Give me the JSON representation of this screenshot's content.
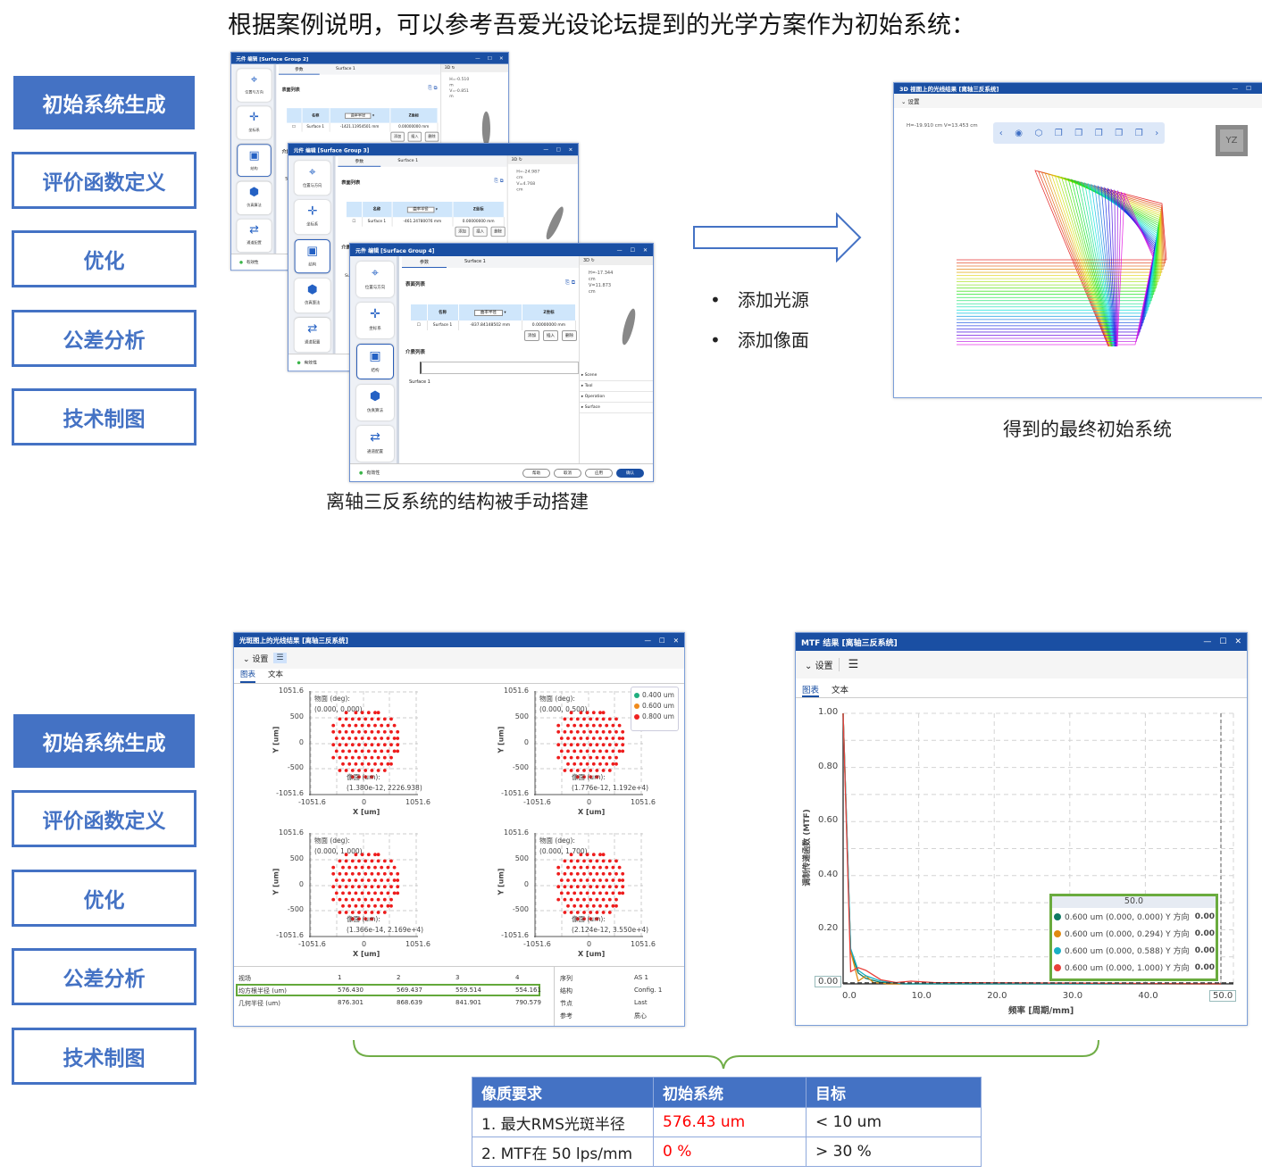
{
  "title": "根据案例说明，可以参考吾爱光设论坛提到的光学方案作为初始系统：",
  "nav_top": [
    "初始系统生成",
    "评价函数定义",
    "优化",
    "公差分析",
    "技术制图"
  ],
  "nav_bottom": [
    "初始系统生成",
    "评价函数定义",
    "优化",
    "公差分析",
    "技术制图"
  ],
  "dialog_common": {
    "side": [
      "位置与方向",
      "坐标系",
      "结构",
      "仿真算法",
      "通道配置"
    ],
    "tabs": [
      "参数",
      "Surface 1"
    ],
    "surface_list": "表面列表",
    "col_name": "名称",
    "col_select": "曲率半径",
    "col_z": "Z坐标",
    "row_name": "Surface 1",
    "z_value": "0.00000000 mm",
    "btn_add": "添加",
    "btn_insert": "插入",
    "btn_delete": "删除",
    "medium_list": "介质列表",
    "medium_surface": "Surface 1",
    "view_label": "3D",
    "tree": [
      "Scene",
      "Tool",
      "Operation",
      "Surface"
    ],
    "validity": "有效性",
    "footer_buttons": [
      "帮助",
      "取消",
      "应用",
      "确认"
    ]
  },
  "dialogs": [
    {
      "title": "元件 编辑 [Surface Group 2]",
      "radius": "-1421.11954501 mm",
      "h": "H=-0.510",
      "hu": "m",
      "v": "V=-0.851",
      "vu": "m"
    },
    {
      "title": "元件 编辑 [Surface Group 3]",
      "radius": "-461.24780076 mm",
      "h": "H=-24.987",
      "hu": "cm",
      "v": "V=4.768",
      "vu": "cm"
    },
    {
      "title": "元件 编辑 [Surface Group 4]",
      "radius": "-837.84148502 mm",
      "h": "H=-17.344",
      "hu": "cm",
      "v": "V=11.873",
      "vu": "cm"
    }
  ],
  "caption_left": "离轴三反系统的结构被手动搭建",
  "bullets": [
    "添加光源",
    "添加像面"
  ],
  "view3d": {
    "title": "3D 视图上的光线结果 [离轴三反系统]",
    "settings": "设置",
    "coords": "H=-19.910 cm V=13.453 cm",
    "view_badge": "YZ"
  },
  "caption_right": "得到的最终初始系统",
  "spot": {
    "title": "光斑图上的光线结果 [离轴三反系统]",
    "settings": "设置",
    "tabs": [
      "图表",
      "文本"
    ],
    "ylabel": "Y [um]",
    "xlabel": "X [um]",
    "ticks": [
      "1051.6",
      "500",
      "0",
      "-500",
      "-1051.6"
    ],
    "xticks": [
      "-1051.6",
      "0",
      "1051.6"
    ],
    "obj_label": "物面 (deg):",
    "img_label": "像面 (um):",
    "plots": [
      {
        "field": "(0.000, 0.000)",
        "image": "(1.380e-12, 2226.938)"
      },
      {
        "field": "(0.000, 0.500)",
        "image": "(1.776e-12, 1.192e+4)"
      },
      {
        "field": "(0.000, 1.000)",
        "image": "(1.366e-14, 2.169e+4)"
      },
      {
        "field": "(0.000, 1.700)",
        "image": "(2.124e-12, 3.550e+4)"
      }
    ],
    "legend": [
      {
        "label": "0.400 um",
        "color": "#1fae7f"
      },
      {
        "label": "0.600 um",
        "color": "#f08a1c"
      },
      {
        "label": "0.800 um",
        "color": "#ee2222"
      }
    ],
    "stats": {
      "header": [
        "视场",
        "1",
        "2",
        "3",
        "4"
      ],
      "rms": [
        "均方根半径 (um)",
        "576.430",
        "569.437",
        "559.514",
        "554.161"
      ],
      "geo": [
        "几何半径 (um)",
        "876.301",
        "868.639",
        "841.901",
        "790.579"
      ],
      "info": [
        [
          "序列",
          "AS 1"
        ],
        [
          "结构",
          "Config. 1"
        ],
        [
          "节点",
          "Last"
        ],
        [
          "参考",
          "质心"
        ]
      ]
    }
  },
  "mtf": {
    "title": "MTF 结果 [离轴三反系统]",
    "settings": "设置",
    "tabs": [
      "图表",
      "文本"
    ],
    "ylabel": "调制传递函数 (MTF)",
    "xlabel": "频率 [周期/mm]",
    "yticks": [
      "1.00",
      "0.80",
      "0.60",
      "0.40",
      "0.20"
    ],
    "y0": "0.00",
    "xticks": [
      "0.0",
      "10.0",
      "20.0",
      "30.0",
      "40.0"
    ],
    "xcursor": "50.0",
    "xlim": [
      0,
      50
    ],
    "ylim": [
      0,
      1
    ],
    "tooltip_header": "50.0",
    "series": [
      {
        "name": "0.600 um (0.000, 0.000) Y 方向",
        "value": "0.00",
        "color": "#0f7a63",
        "x": [
          0,
          1,
          2,
          3,
          5,
          8,
          50
        ],
        "y": [
          1,
          0.12,
          0.04,
          0.02,
          0.005,
          0,
          0
        ]
      },
      {
        "name": "0.600 um (0.000, 0.294) Y 方向",
        "value": "0.00",
        "color": "#e08a10",
        "x": [
          0,
          1,
          2,
          3,
          4,
          6,
          50
        ],
        "y": [
          1,
          0.12,
          0.01,
          0.03,
          0.005,
          0,
          0
        ]
      },
      {
        "name": "0.600 um (0.000, 0.588) Y 方向",
        "value": "0.00",
        "color": "#19b0c4",
        "x": [
          0,
          1,
          2,
          3,
          5,
          8,
          50
        ],
        "y": [
          1,
          0.13,
          0.05,
          0.03,
          0.01,
          0,
          0
        ]
      },
      {
        "name": "0.600 um (0.000, 1.000) Y 方向",
        "value": "0.00",
        "color": "#e8413a",
        "x": [
          0,
          1,
          2,
          3,
          5,
          7,
          9,
          12,
          50
        ],
        "y": [
          1,
          0.045,
          0.06,
          0.05,
          0.015,
          0.005,
          0.01,
          0.005,
          0
        ]
      }
    ]
  },
  "quality_table": {
    "headers": [
      "像质要求",
      "初始系统",
      "目标"
    ],
    "rows": [
      [
        "1. 最大RMS光斑半径",
        "576.43 um",
        "< 10 um"
      ],
      [
        "2. MTF在 50 lps/mm",
        "0 %",
        "> 30 %"
      ]
    ],
    "highlight_color": "#ff0000"
  }
}
